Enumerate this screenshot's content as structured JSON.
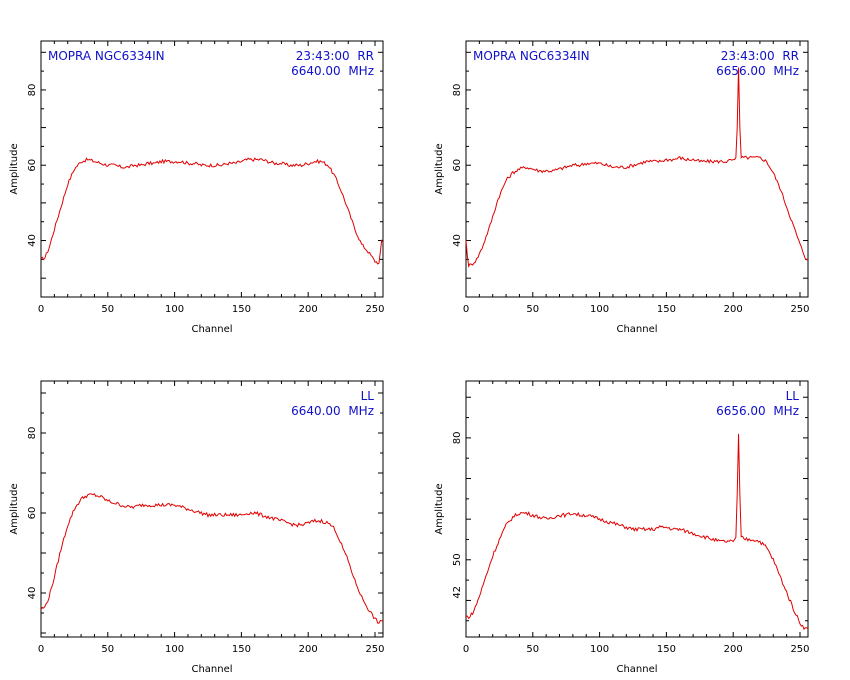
{
  "chart_data": [
    {
      "type": "line",
      "title": "",
      "xlabel": "Channel",
      "ylabel": "Amplitude",
      "xlim": [
        0,
        256
      ],
      "ylim": [
        25,
        93
      ],
      "xticks": [
        0,
        50,
        100,
        150,
        200,
        250
      ],
      "yticks": [
        40,
        60,
        80
      ],
      "info_left": "MOPRA NGC6334IN",
      "info_right": [
        "23:43:00  RR",
        "6640.00  MHz"
      ],
      "color": "#e00000",
      "series": [
        {
          "x": [
            0,
            3,
            6,
            10,
            15,
            20,
            25,
            30,
            35,
            40,
            45,
            50,
            55,
            60,
            65,
            70,
            75,
            80,
            85,
            90,
            95,
            100,
            105,
            110,
            115,
            120,
            125,
            130,
            135,
            140,
            145,
            150,
            155,
            160,
            165,
            170,
            175,
            180,
            185,
            190,
            195,
            200,
            205,
            210,
            215,
            220,
            225,
            230,
            235,
            240,
            245,
            250,
            253,
            254,
            255,
            256
          ],
          "values": [
            35,
            35.5,
            38,
            43,
            49,
            55,
            59,
            61,
            61.5,
            61,
            60.5,
            60,
            60,
            59.5,
            59.5,
            60,
            60,
            60.5,
            60.5,
            61,
            61,
            61,
            61,
            60.5,
            60.5,
            60,
            60,
            60,
            60,
            60.5,
            60.5,
            61,
            61.5,
            61.5,
            61.5,
            61,
            60.5,
            60.5,
            60,
            60,
            60,
            60.5,
            61,
            61,
            60,
            57,
            53,
            48,
            43,
            39,
            37,
            34.5,
            34,
            37,
            40,
            39.5
          ]
        }
      ]
    },
    {
      "type": "line",
      "title": "",
      "xlabel": "Channel",
      "ylabel": "Amplitude",
      "xlim": [
        0,
        256
      ],
      "ylim": [
        25,
        93
      ],
      "xticks": [
        0,
        50,
        100,
        150,
        200,
        250
      ],
      "yticks": [
        40,
        60,
        80
      ],
      "info_left": "MOPRA NGC6334IN",
      "info_right": [
        "23:43:00  RR",
        "6656.00  MHz"
      ],
      "color": "#e00000",
      "series": [
        {
          "x": [
            0,
            1,
            2,
            4,
            8,
            12,
            18,
            24,
            30,
            35,
            40,
            45,
            50,
            55,
            60,
            65,
            70,
            75,
            80,
            85,
            90,
            95,
            100,
            105,
            110,
            115,
            120,
            125,
            130,
            135,
            140,
            145,
            150,
            155,
            160,
            165,
            170,
            175,
            180,
            185,
            190,
            195,
            200,
            201,
            202,
            203,
            204,
            205,
            206,
            207,
            210,
            215,
            220,
            225,
            230,
            235,
            240,
            245,
            250,
            254,
            256
          ],
          "values": [
            40,
            36,
            33.5,
            33.5,
            35,
            38,
            44,
            51,
            56,
            58,
            59,
            59.5,
            59,
            58.5,
            58.5,
            58.5,
            59,
            59.5,
            60,
            60,
            60.5,
            60.5,
            60.5,
            60,
            59.5,
            59.5,
            59.5,
            60,
            60.5,
            61,
            61,
            61,
            61.5,
            61.5,
            62,
            61.5,
            61.5,
            61,
            61,
            61,
            61,
            61,
            61.5,
            61.5,
            62,
            70,
            86,
            70,
            62,
            62,
            62,
            62,
            62,
            61,
            58,
            54,
            49,
            44,
            39,
            35.5,
            35
          ]
        }
      ]
    },
    {
      "type": "line",
      "title": "",
      "xlabel": "Channel",
      "ylabel": "Amplitude",
      "xlim": [
        0,
        256
      ],
      "ylim": [
        29,
        93
      ],
      "xticks": [
        0,
        50,
        100,
        150,
        200,
        250
      ],
      "yticks": [
        40,
        60,
        80
      ],
      "info_left": "",
      "info_right": [
        "LL",
        "6640.00  MHz"
      ],
      "color": "#e00000",
      "series": [
        {
          "x": [
            0,
            3,
            6,
            10,
            15,
            20,
            25,
            30,
            35,
            40,
            45,
            50,
            55,
            60,
            65,
            70,
            75,
            80,
            85,
            90,
            95,
            100,
            105,
            110,
            115,
            120,
            125,
            130,
            135,
            140,
            145,
            150,
            155,
            160,
            165,
            170,
            175,
            180,
            185,
            190,
            195,
            200,
            205,
            210,
            215,
            220,
            225,
            230,
            235,
            240,
            245,
            250,
            253,
            256
          ],
          "values": [
            36,
            36.5,
            39,
            44,
            51,
            57,
            61,
            63.5,
            64.5,
            64.5,
            64,
            63,
            62.5,
            62,
            61.5,
            61.5,
            62,
            62,
            62,
            62,
            62,
            62,
            61.5,
            61,
            60.5,
            60,
            59.5,
            59.5,
            59.5,
            59.5,
            59.5,
            59.5,
            60,
            60,
            59.5,
            59,
            58.5,
            58,
            57.5,
            57,
            57,
            57.5,
            58,
            58,
            57.5,
            56,
            52,
            48,
            43,
            39,
            36,
            33.5,
            32.5,
            33
          ]
        }
      ]
    },
    {
      "type": "line",
      "title": "",
      "xlabel": "Channel",
      "ylabel": "Amplitude",
      "xlim": [
        0,
        256
      ],
      "ylim": [
        31,
        94
      ],
      "xticks": [
        0,
        50,
        100,
        150,
        200,
        250
      ],
      "yticks": [
        42,
        50,
        80
      ],
      "ytick_labels": [
        "42",
        "50",
        "80"
      ],
      "info_left": "",
      "info_right": [
        "LL",
        "6656.00  MHz"
      ],
      "color": "#e00000",
      "series": [
        {
          "x": [
            0,
            3,
            6,
            10,
            15,
            20,
            25,
            30,
            35,
            40,
            45,
            50,
            55,
            60,
            65,
            70,
            75,
            80,
            85,
            90,
            95,
            100,
            105,
            110,
            115,
            120,
            125,
            130,
            135,
            140,
            145,
            150,
            155,
            160,
            165,
            170,
            175,
            180,
            185,
            190,
            195,
            200,
            201,
            202,
            203,
            204,
            205,
            206,
            210,
            215,
            220,
            225,
            230,
            235,
            240,
            245,
            250,
            254,
            256
          ],
          "values": [
            36,
            36,
            37.5,
            41,
            46,
            51,
            55,
            58.5,
            60.5,
            61.5,
            61.5,
            61,
            60.5,
            60,
            60.5,
            61,
            61,
            61.5,
            61,
            61,
            60.5,
            60,
            59.5,
            59,
            58.5,
            58,
            57.5,
            57.5,
            57.5,
            57.5,
            58,
            58,
            57.5,
            57.5,
            57,
            56.5,
            56,
            55.5,
            55,
            54.5,
            54.5,
            54.5,
            55,
            55.5,
            66,
            81,
            66,
            55.5,
            55,
            55,
            54.5,
            53,
            50,
            46,
            42,
            38,
            34.5,
            33,
            33
          ]
        }
      ]
    }
  ]
}
